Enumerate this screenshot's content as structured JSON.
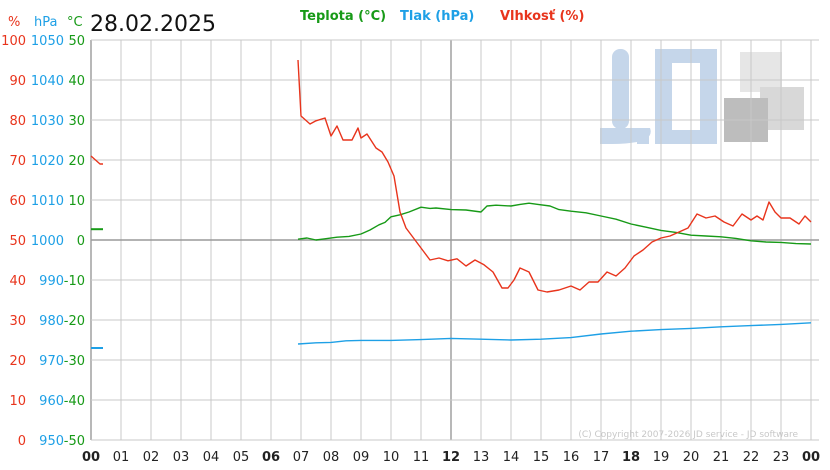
{
  "header": {
    "date": "28.02.2025",
    "unit_hum": "%",
    "unit_pres": "hPa",
    "unit_temp": "°C"
  },
  "legend": {
    "temperature": "Teplota (°C)",
    "pressure": "Tlak (hPa)",
    "humidity": "Vlhkosť (%)"
  },
  "copyright": "(C) Copyright 2007-2026 JD service - JD software",
  "colors": {
    "temperature": "#179a17",
    "pressure": "#1ea0e6",
    "humidity": "#e8341c",
    "grid": "#c8c8c8",
    "logo_blue": "#c5d6ea",
    "logo_gray": "#bdbdbd"
  },
  "logo_icon": "jd-logo-watermark",
  "chart_data": {
    "type": "line",
    "grid": true,
    "x_ticks": [
      "00",
      "01",
      "02",
      "03",
      "04",
      "05",
      "06",
      "07",
      "08",
      "09",
      "10",
      "11",
      "12",
      "13",
      "14",
      "15",
      "16",
      "17",
      "18",
      "19",
      "20",
      "21",
      "22",
      "23",
      "00"
    ],
    "bold_x_ticks": [
      0,
      6,
      12,
      18,
      24
    ],
    "xlim": [
      0,
      24
    ],
    "y_axes": {
      "humidity": {
        "ticks": [
          "100",
          "90",
          "80",
          "70",
          "60",
          "50",
          "40",
          "30",
          "20",
          "10",
          "0"
        ],
        "range": [
          0,
          100
        ]
      },
      "pressure": {
        "ticks": [
          "1050",
          "1040",
          "1030",
          "1020",
          "1010",
          "1000",
          "990",
          "980",
          "970",
          "960",
          "950"
        ],
        "range": [
          950,
          1050
        ]
      },
      "temperature": {
        "ticks": [
          "50",
          "40",
          "30",
          "20",
          "10",
          "0",
          "-10",
          "-20",
          "-30",
          "-40",
          "-50"
        ],
        "range": [
          -50,
          50
        ]
      }
    },
    "series": [
      {
        "name": "Teplota (°C)",
        "axis": "temperature",
        "segments": [
          [
            [
              0.0,
              2.7
            ],
            [
              0.4,
              2.7
            ]
          ],
          [
            [
              6.9,
              0.2
            ],
            [
              7.2,
              0.5
            ],
            [
              7.5,
              0.0
            ],
            [
              7.8,
              0.3
            ],
            [
              8.2,
              0.7
            ],
            [
              8.6,
              0.9
            ],
            [
              9.0,
              1.5
            ],
            [
              9.3,
              2.5
            ],
            [
              9.6,
              3.8
            ],
            [
              9.8,
              4.4
            ],
            [
              10.0,
              5.8
            ],
            [
              10.3,
              6.3
            ],
            [
              10.6,
              7.0
            ],
            [
              11.0,
              8.2
            ],
            [
              11.3,
              7.9
            ],
            [
              11.5,
              8.0
            ],
            [
              12.0,
              7.6
            ],
            [
              12.5,
              7.5
            ],
            [
              13.0,
              7.0
            ],
            [
              13.2,
              8.5
            ],
            [
              13.5,
              8.7
            ],
            [
              14.0,
              8.5
            ],
            [
              14.3,
              8.9
            ],
            [
              14.6,
              9.2
            ],
            [
              14.9,
              8.9
            ],
            [
              15.3,
              8.5
            ],
            [
              15.6,
              7.6
            ],
            [
              16.0,
              7.2
            ],
            [
              16.5,
              6.8
            ],
            [
              17.0,
              6.0
            ],
            [
              17.5,
              5.2
            ],
            [
              18.0,
              4.0
            ],
            [
              18.5,
              3.2
            ],
            [
              19.0,
              2.4
            ],
            [
              19.5,
              1.9
            ],
            [
              20.0,
              1.2
            ],
            [
              20.5,
              1.0
            ],
            [
              21.0,
              0.8
            ],
            [
              21.5,
              0.4
            ],
            [
              22.0,
              -0.2
            ],
            [
              22.5,
              -0.5
            ],
            [
              23.0,
              -0.6
            ],
            [
              23.5,
              -0.9
            ],
            [
              24.0,
              -1.0
            ]
          ]
        ]
      },
      {
        "name": "Tlak (hPa)",
        "axis": "pressure",
        "segments": [
          [
            [
              0.0,
              973.0
            ],
            [
              0.4,
              973.0
            ]
          ],
          [
            [
              6.9,
              974.0
            ],
            [
              7.5,
              974.3
            ],
            [
              8.0,
              974.4
            ],
            [
              8.5,
              974.8
            ],
            [
              9.0,
              974.9
            ],
            [
              10.0,
              974.9
            ],
            [
              11.0,
              975.1
            ],
            [
              12.0,
              975.4
            ],
            [
              13.0,
              975.2
            ],
            [
              14.0,
              975.0
            ],
            [
              15.0,
              975.2
            ],
            [
              16.0,
              975.6
            ],
            [
              17.0,
              976.5
            ],
            [
              18.0,
              977.2
            ],
            [
              19.0,
              977.6
            ],
            [
              20.0,
              977.9
            ],
            [
              21.0,
              978.3
            ],
            [
              22.0,
              978.6
            ],
            [
              23.0,
              978.9
            ],
            [
              24.0,
              979.3
            ]
          ]
        ]
      },
      {
        "name": "Vlhkosť (%)",
        "axis": "humidity",
        "segments": [
          [
            [
              0.0,
              71.0
            ],
            [
              0.3,
              69.0
            ],
            [
              0.4,
              69.0
            ]
          ],
          [
            [
              6.9,
              95.0
            ],
            [
              7.0,
              81.0
            ],
            [
              7.3,
              79.0
            ],
            [
              7.5,
              79.8
            ],
            [
              7.8,
              80.5
            ],
            [
              8.0,
              76.0
            ],
            [
              8.2,
              78.5
            ],
            [
              8.4,
              75.0
            ],
            [
              8.7,
              75.0
            ],
            [
              8.9,
              78.0
            ],
            [
              9.0,
              75.5
            ],
            [
              9.2,
              76.5
            ],
            [
              9.5,
              73.0
            ],
            [
              9.7,
              72.0
            ],
            [
              9.9,
              69.5
            ],
            [
              10.1,
              66.0
            ],
            [
              10.3,
              57.0
            ],
            [
              10.5,
              53.0
            ],
            [
              10.8,
              50.0
            ],
            [
              11.1,
              47.0
            ],
            [
              11.3,
              45.0
            ],
            [
              11.6,
              45.5
            ],
            [
              11.9,
              44.8
            ],
            [
              12.2,
              45.3
            ],
            [
              12.5,
              43.5
            ],
            [
              12.8,
              45.0
            ],
            [
              13.1,
              43.8
            ],
            [
              13.4,
              42.0
            ],
            [
              13.7,
              38.0
            ],
            [
              13.9,
              38.0
            ],
            [
              14.1,
              40.0
            ],
            [
              14.3,
              43.0
            ],
            [
              14.6,
              42.0
            ],
            [
              14.9,
              37.5
            ],
            [
              15.2,
              37.0
            ],
            [
              15.6,
              37.5
            ],
            [
              16.0,
              38.5
            ],
            [
              16.3,
              37.5
            ],
            [
              16.6,
              39.5
            ],
            [
              16.9,
              39.5
            ],
            [
              17.2,
              42.0
            ],
            [
              17.5,
              41.0
            ],
            [
              17.8,
              43.0
            ],
            [
              18.1,
              46.0
            ],
            [
              18.4,
              47.5
            ],
            [
              18.7,
              49.5
            ],
            [
              19.0,
              50.5
            ],
            [
              19.3,
              51.0
            ],
            [
              19.6,
              52.0
            ],
            [
              19.9,
              53.0
            ],
            [
              20.2,
              56.5
            ],
            [
              20.5,
              55.5
            ],
            [
              20.8,
              56.0
            ],
            [
              21.1,
              54.5
            ],
            [
              21.4,
              53.5
            ],
            [
              21.7,
              56.5
            ],
            [
              22.0,
              55.0
            ],
            [
              22.2,
              56.0
            ],
            [
              22.4,
              55.0
            ],
            [
              22.6,
              59.5
            ],
            [
              22.8,
              57.0
            ],
            [
              23.0,
              55.5
            ],
            [
              23.3,
              55.5
            ],
            [
              23.6,
              54.0
            ],
            [
              23.8,
              56.0
            ],
            [
              24.0,
              54.5
            ]
          ]
        ]
      }
    ]
  }
}
